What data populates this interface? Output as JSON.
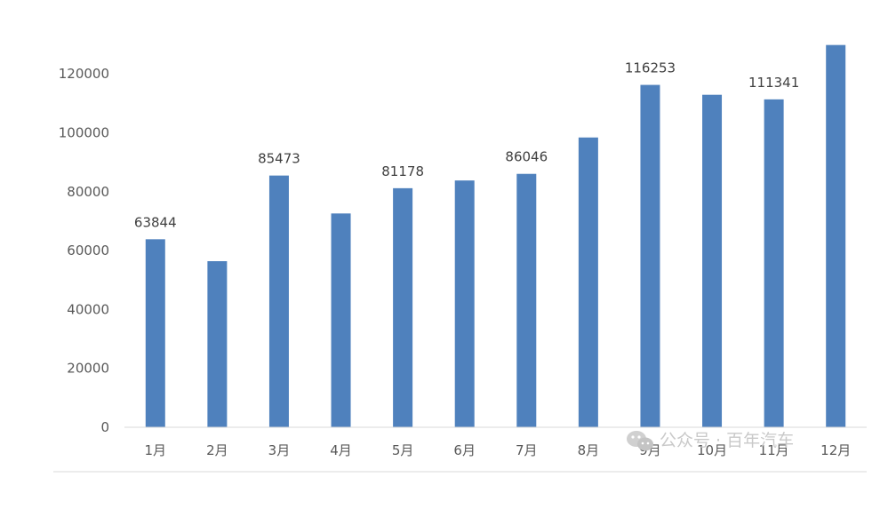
{
  "chart_data": {
    "type": "bar",
    "categories": [
      "1月",
      "2月",
      "3月",
      "4月",
      "5月",
      "6月",
      "7月",
      "8月",
      "9月",
      "10月",
      "11月",
      "12月"
    ],
    "values": [
      63844,
      56400,
      85473,
      72600,
      81178,
      83800,
      86046,
      98400,
      116253,
      112900,
      111341,
      129800
    ],
    "data_labels": [
      "63844",
      "",
      "85473",
      "",
      "81178",
      "",
      "86046",
      "",
      "116253",
      "",
      "111341",
      ""
    ],
    "y_ticks": [
      "0",
      "20000",
      "40000",
      "60000",
      "80000",
      "100000",
      "120000"
    ],
    "ylim": [
      0,
      130000
    ],
    "grid": false,
    "bar_color": "#4f81bd"
  },
  "watermark": {
    "text": "公众号 · 百年汽车",
    "icon": "wechat-icon"
  }
}
